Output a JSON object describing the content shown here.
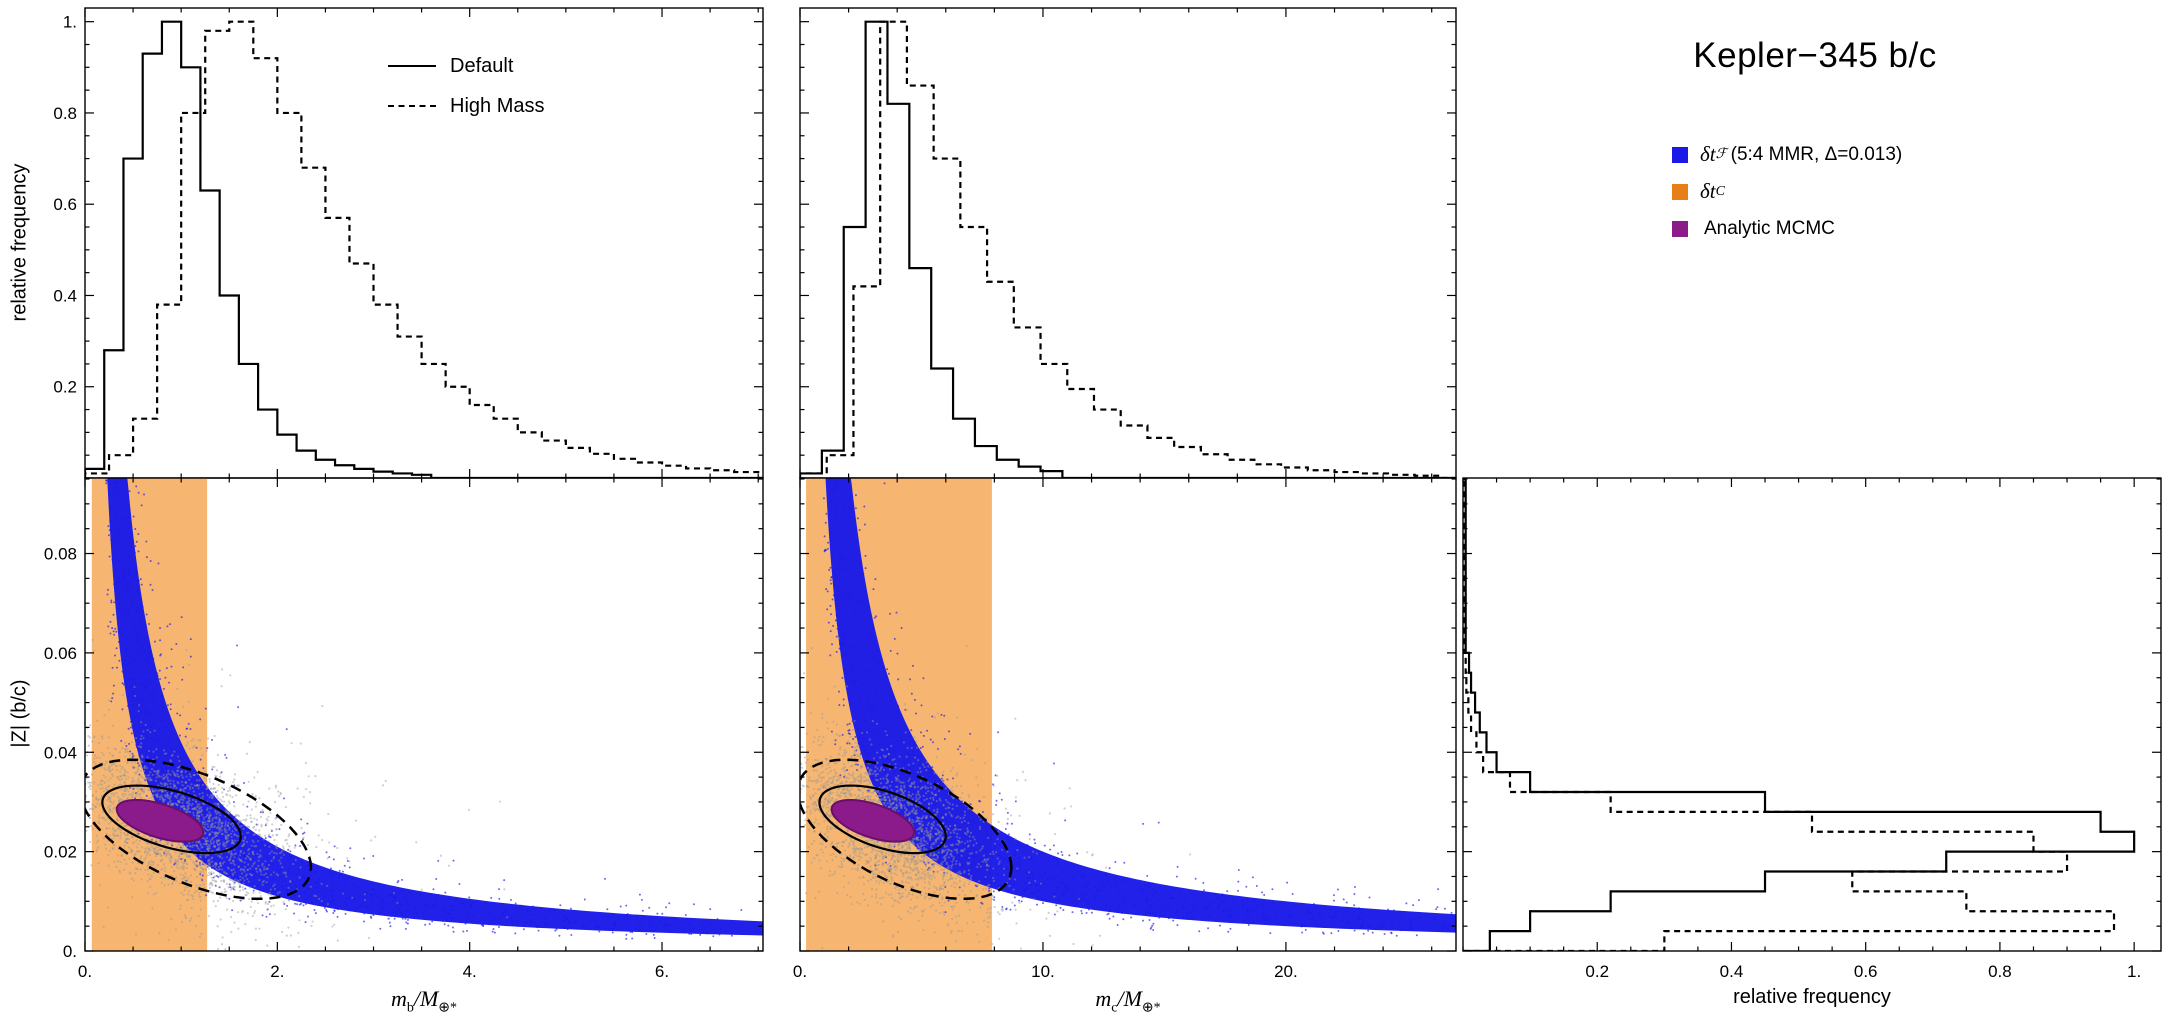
{
  "title": "Kepler−345 b/c",
  "colors": {
    "blue": "#1A1AE8",
    "orange_band": "#F6B671",
    "orange": "#E87D1A",
    "purple": "#8B1A8B",
    "gray": "#969696",
    "black": "#000000"
  },
  "legend": {
    "items": [
      {
        "color": "#1A1AE8",
        "base": "δt",
        "sub": "ℱ",
        "rest": " (5:4 MMR, Δ=0.013)"
      },
      {
        "color": "#E87D1A",
        "base": "δt",
        "sub": "C",
        "rest": ""
      },
      {
        "color": "#8B1A8B",
        "base": "",
        "sub": "",
        "rest": "Analytic MCMC"
      }
    ]
  },
  "axis_labels": {
    "mb": {
      "p1": "m",
      "p2": "b",
      "p3": "/M",
      "p4": "⊕*"
    },
    "mc": {
      "p1": "m",
      "p2": "c",
      "p3": "/M",
      "p4": "⊕*"
    }
  },
  "chart_data": [
    {
      "id": "mb_histogram",
      "panel": "top-left",
      "type": "bar",
      "subtype": "step-histogram",
      "orientation": "vertical",
      "title": "",
      "xlabel": "m_b/M_⊕*",
      "ylabel": "relative frequency",
      "xlim": [
        0,
        7.05
      ],
      "ylim": [
        0,
        1.03
      ],
      "x_ticks": {
        "major": [
          0,
          2,
          4,
          6
        ],
        "minor_step": 0.5,
        "labels": []
      },
      "y_ticks": {
        "major": [
          0.2,
          0.4,
          0.6,
          0.8,
          1.0
        ],
        "minor_step": 0.05,
        "labels": [
          "0.2",
          "0.4",
          "0.6",
          "0.8",
          "1."
        ]
      },
      "legend_position": "top-right",
      "series": [
        {
          "name": "Default",
          "line": "solid",
          "bin_edges": [
            0,
            0.2,
            0.4,
            0.6,
            0.8,
            1.0,
            1.2,
            1.4,
            1.6,
            1.8,
            2.0,
            2.2,
            2.4,
            2.6,
            2.8,
            3.0,
            3.2,
            3.4,
            3.6
          ],
          "values": [
            0.02,
            0.28,
            0.7,
            0.93,
            1.0,
            0.9,
            0.63,
            0.4,
            0.25,
            0.15,
            0.095,
            0.06,
            0.04,
            0.028,
            0.02,
            0.014,
            0.01,
            0.007
          ]
        },
        {
          "name": "High Mass",
          "line": "dashed",
          "bin_edges": [
            0,
            0.25,
            0.5,
            0.75,
            1,
            1.25,
            1.5,
            1.75,
            2,
            2.25,
            2.5,
            2.75,
            3,
            3.25,
            3.5,
            3.75,
            4,
            4.25,
            4.5,
            4.75,
            5,
            5.25,
            5.5,
            5.75,
            6,
            6.25,
            6.5,
            6.75,
            7
          ],
          "values": [
            0.01,
            0.05,
            0.13,
            0.38,
            0.8,
            0.98,
            1.0,
            0.92,
            0.8,
            0.68,
            0.57,
            0.47,
            0.38,
            0.31,
            0.25,
            0.2,
            0.16,
            0.13,
            0.1,
            0.082,
            0.066,
            0.053,
            0.042,
            0.034,
            0.027,
            0.021,
            0.017,
            0.013
          ]
        }
      ]
    },
    {
      "id": "mc_histogram",
      "panel": "top-middle",
      "type": "bar",
      "subtype": "step-histogram",
      "orientation": "vertical",
      "title": "",
      "xlabel": "m_c/M_⊕*",
      "ylabel": "relative frequency",
      "xlim": [
        0,
        27
      ],
      "ylim": [
        0,
        1.03
      ],
      "x_ticks": {
        "major": [
          0,
          10,
          20
        ],
        "minor_step": 2,
        "labels": []
      },
      "y_ticks": {
        "major": [
          0.2,
          0.4,
          0.6,
          0.8,
          1.0
        ],
        "minor_step": 0.05,
        "labels": []
      },
      "series": [
        {
          "name": "Default",
          "line": "solid",
          "bin_edges": [
            0,
            0.9,
            1.8,
            2.7,
            3.6,
            4.5,
            5.4,
            6.3,
            7.2,
            8.1,
            9,
            9.9,
            10.8
          ],
          "values": [
            0.01,
            0.06,
            0.55,
            1.0,
            0.82,
            0.46,
            0.24,
            0.13,
            0.07,
            0.04,
            0.025,
            0.015
          ]
        },
        {
          "name": "High Mass",
          "line": "dashed",
          "bin_edges": [
            0,
            1.1,
            2.2,
            3.3,
            4.4,
            5.5,
            6.6,
            7.7,
            8.8,
            9.9,
            11,
            12.1,
            13.2,
            14.3,
            15.4,
            16.5,
            17.6,
            18.7,
            19.8,
            20.9,
            22,
            23.1,
            24.2,
            25.3,
            26.4
          ],
          "values": [
            0.01,
            0.05,
            0.42,
            1.0,
            0.86,
            0.7,
            0.55,
            0.43,
            0.33,
            0.25,
            0.195,
            0.15,
            0.115,
            0.088,
            0.068,
            0.052,
            0.04,
            0.03,
            0.023,
            0.017,
            0.013,
            0.01,
            0.007,
            0.005
          ]
        }
      ]
    },
    {
      "id": "mb_vs_z_scatter",
      "panel": "bottom-left",
      "type": "scatter",
      "title": "",
      "xlabel": "m_b/M_⊕*",
      "ylabel": "|Z| (b/c)",
      "xlim": [
        0,
        7.05
      ],
      "ylim": [
        0,
        0.0952
      ],
      "x_ticks": {
        "major": [
          0,
          2,
          4,
          6
        ],
        "minor_step": 0.5,
        "labels": [
          "0.",
          "2.",
          "4.",
          "6."
        ]
      },
      "y_ticks": {
        "major": [
          0,
          0.02,
          0.04,
          0.06,
          0.08
        ],
        "minor_step": 0.005,
        "labels": [
          "0.",
          "0.02",
          "0.04",
          "0.06",
          "0.08"
        ]
      },
      "orange_band_x": [
        0.07,
        1.27
      ],
      "blue_band": {
        "z_lower_coeff": 0.022,
        "z_upper_coeff": 0.042
      },
      "gray_cloud": {
        "center": [
          0.95,
          0.0255
        ],
        "sigma": [
          0.52,
          0.0075
        ],
        "corr": -0.5,
        "n": 2600
      },
      "contours": {
        "solid": {
          "center": [
            0.9,
            0.0265
          ],
          "semi": [
            0.72,
            0.0068
          ],
          "corr": -0.5
        },
        "dashed": {
          "center": [
            1.15,
            0.0245
          ],
          "semi": [
            1.2,
            0.014
          ],
          "corr": -0.55
        }
      },
      "mcmc": {
        "center": [
          0.78,
          0.0262
        ],
        "semi": [
          0.45,
          0.0042
        ],
        "corr": -0.55
      }
    },
    {
      "id": "mc_vs_z_scatter",
      "panel": "bottom-middle",
      "type": "scatter",
      "title": "",
      "xlabel": "m_c/M_⊕*",
      "ylabel": "|Z| (b/c)",
      "xlim": [
        0,
        27
      ],
      "ylim": [
        0,
        0.0952
      ],
      "x_ticks": {
        "major": [
          0,
          10,
          20
        ],
        "minor_step": 2,
        "labels": [
          "0.",
          "10.",
          "20."
        ]
      },
      "y_ticks": {
        "major": [
          0,
          0.02,
          0.04,
          0.06,
          0.08
        ],
        "minor_step": 0.005,
        "labels": []
      },
      "orange_band_x": [
        0.25,
        7.9
      ],
      "blue_band": {
        "z_lower_coeff": 0.1,
        "z_upper_coeff": 0.2
      },
      "gray_cloud": {
        "center": [
          3.7,
          0.0255
        ],
        "sigma": [
          1.9,
          0.0075
        ],
        "corr": -0.5,
        "n": 2600
      },
      "contours": {
        "solid": {
          "center": [
            3.4,
            0.0265
          ],
          "semi": [
            2.6,
            0.0068
          ],
          "corr": -0.5
        },
        "dashed": {
          "center": [
            4.3,
            0.0245
          ],
          "semi": [
            4.4,
            0.014
          ],
          "corr": -0.55
        }
      },
      "mcmc": {
        "center": [
          3.0,
          0.0262
        ],
        "semi": [
          1.7,
          0.0042
        ],
        "corr": -0.55
      }
    },
    {
      "id": "z_histogram",
      "panel": "bottom-right",
      "type": "bar",
      "subtype": "step-histogram",
      "orientation": "horizontal",
      "title": "",
      "xlabel": "relative frequency",
      "ylabel": "|Z| (b/c)",
      "xlim": [
        0,
        1.04
      ],
      "ylim": [
        0,
        0.0952
      ],
      "x_ticks": {
        "major": [
          0.2,
          0.4,
          0.6,
          0.8,
          1.0
        ],
        "minor_step": 0.05,
        "labels": [
          "0.2",
          "0.4",
          "0.6",
          "0.8",
          "1."
        ]
      },
      "y_ticks": {
        "major": [
          0,
          0.02,
          0.04,
          0.06,
          0.08
        ],
        "minor_step": 0.005,
        "labels": []
      },
      "series": [
        {
          "name": "Default",
          "line": "solid",
          "bin_edges": [
            0,
            0.004,
            0.008,
            0.012,
            0.016,
            0.02,
            0.024,
            0.028,
            0.032,
            0.036,
            0.04,
            0.044,
            0.048,
            0.052,
            0.056,
            0.06,
            0.095
          ],
          "values": [
            0.04,
            0.1,
            0.22,
            0.45,
            0.72,
            1.0,
            0.95,
            0.45,
            0.1,
            0.05,
            0.035,
            0.025,
            0.018,
            0.012,
            0.009,
            0.004
          ]
        },
        {
          "name": "High Mass",
          "line": "dashed",
          "bin_edges": [
            0,
            0.004,
            0.008,
            0.012,
            0.016,
            0.02,
            0.024,
            0.028,
            0.032,
            0.036,
            0.04,
            0.044,
            0.048,
            0.052,
            0.056,
            0.06,
            0.095
          ],
          "values": [
            0.3,
            0.97,
            0.75,
            0.58,
            0.9,
            0.85,
            0.52,
            0.22,
            0.07,
            0.03,
            0.02,
            0.012,
            0.008,
            0.005,
            0.004,
            0.002
          ]
        }
      ]
    }
  ]
}
